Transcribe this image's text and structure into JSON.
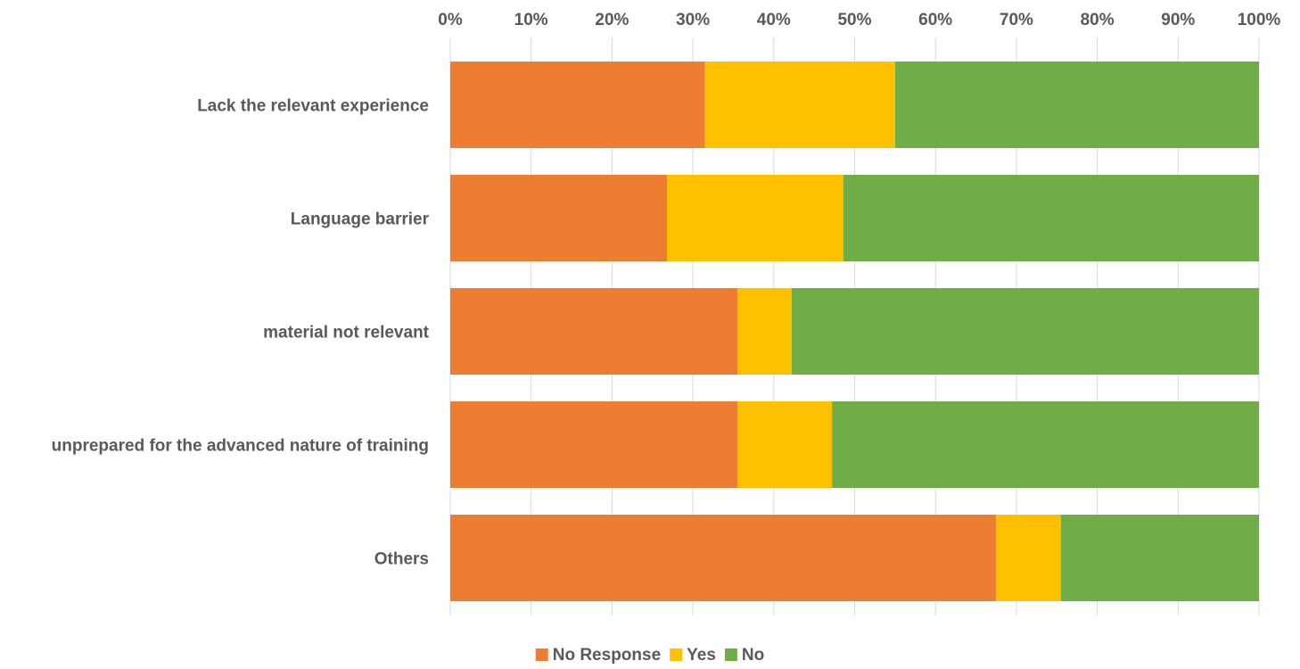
{
  "chart_data": {
    "type": "bar",
    "orientation": "horizontal",
    "stacked": "percent",
    "categories": [
      "Lack the relevant experience",
      "Language barrier",
      "material not relevant",
      "unprepared for the advanced nature of training",
      "Others"
    ],
    "series": [
      {
        "name": "No Response",
        "color": "#ED7D31",
        "values": [
          31.5,
          26.8,
          35.5,
          35.5,
          67.5
        ]
      },
      {
        "name": "Yes",
        "color": "#FFC000",
        "values": [
          23.5,
          21.8,
          6.7,
          11.7,
          8.0
        ]
      },
      {
        "name": "No",
        "color": "#70AD47",
        "values": [
          45.0,
          51.4,
          57.8,
          52.8,
          24.5
        ]
      }
    ],
    "xlim": [
      0,
      100
    ],
    "x_ticks": [
      "0%",
      "10%",
      "20%",
      "30%",
      "40%",
      "50%",
      "60%",
      "70%",
      "80%",
      "90%",
      "100%"
    ],
    "x_axis_position": "top",
    "grid": true,
    "legend_position": "bottom"
  }
}
